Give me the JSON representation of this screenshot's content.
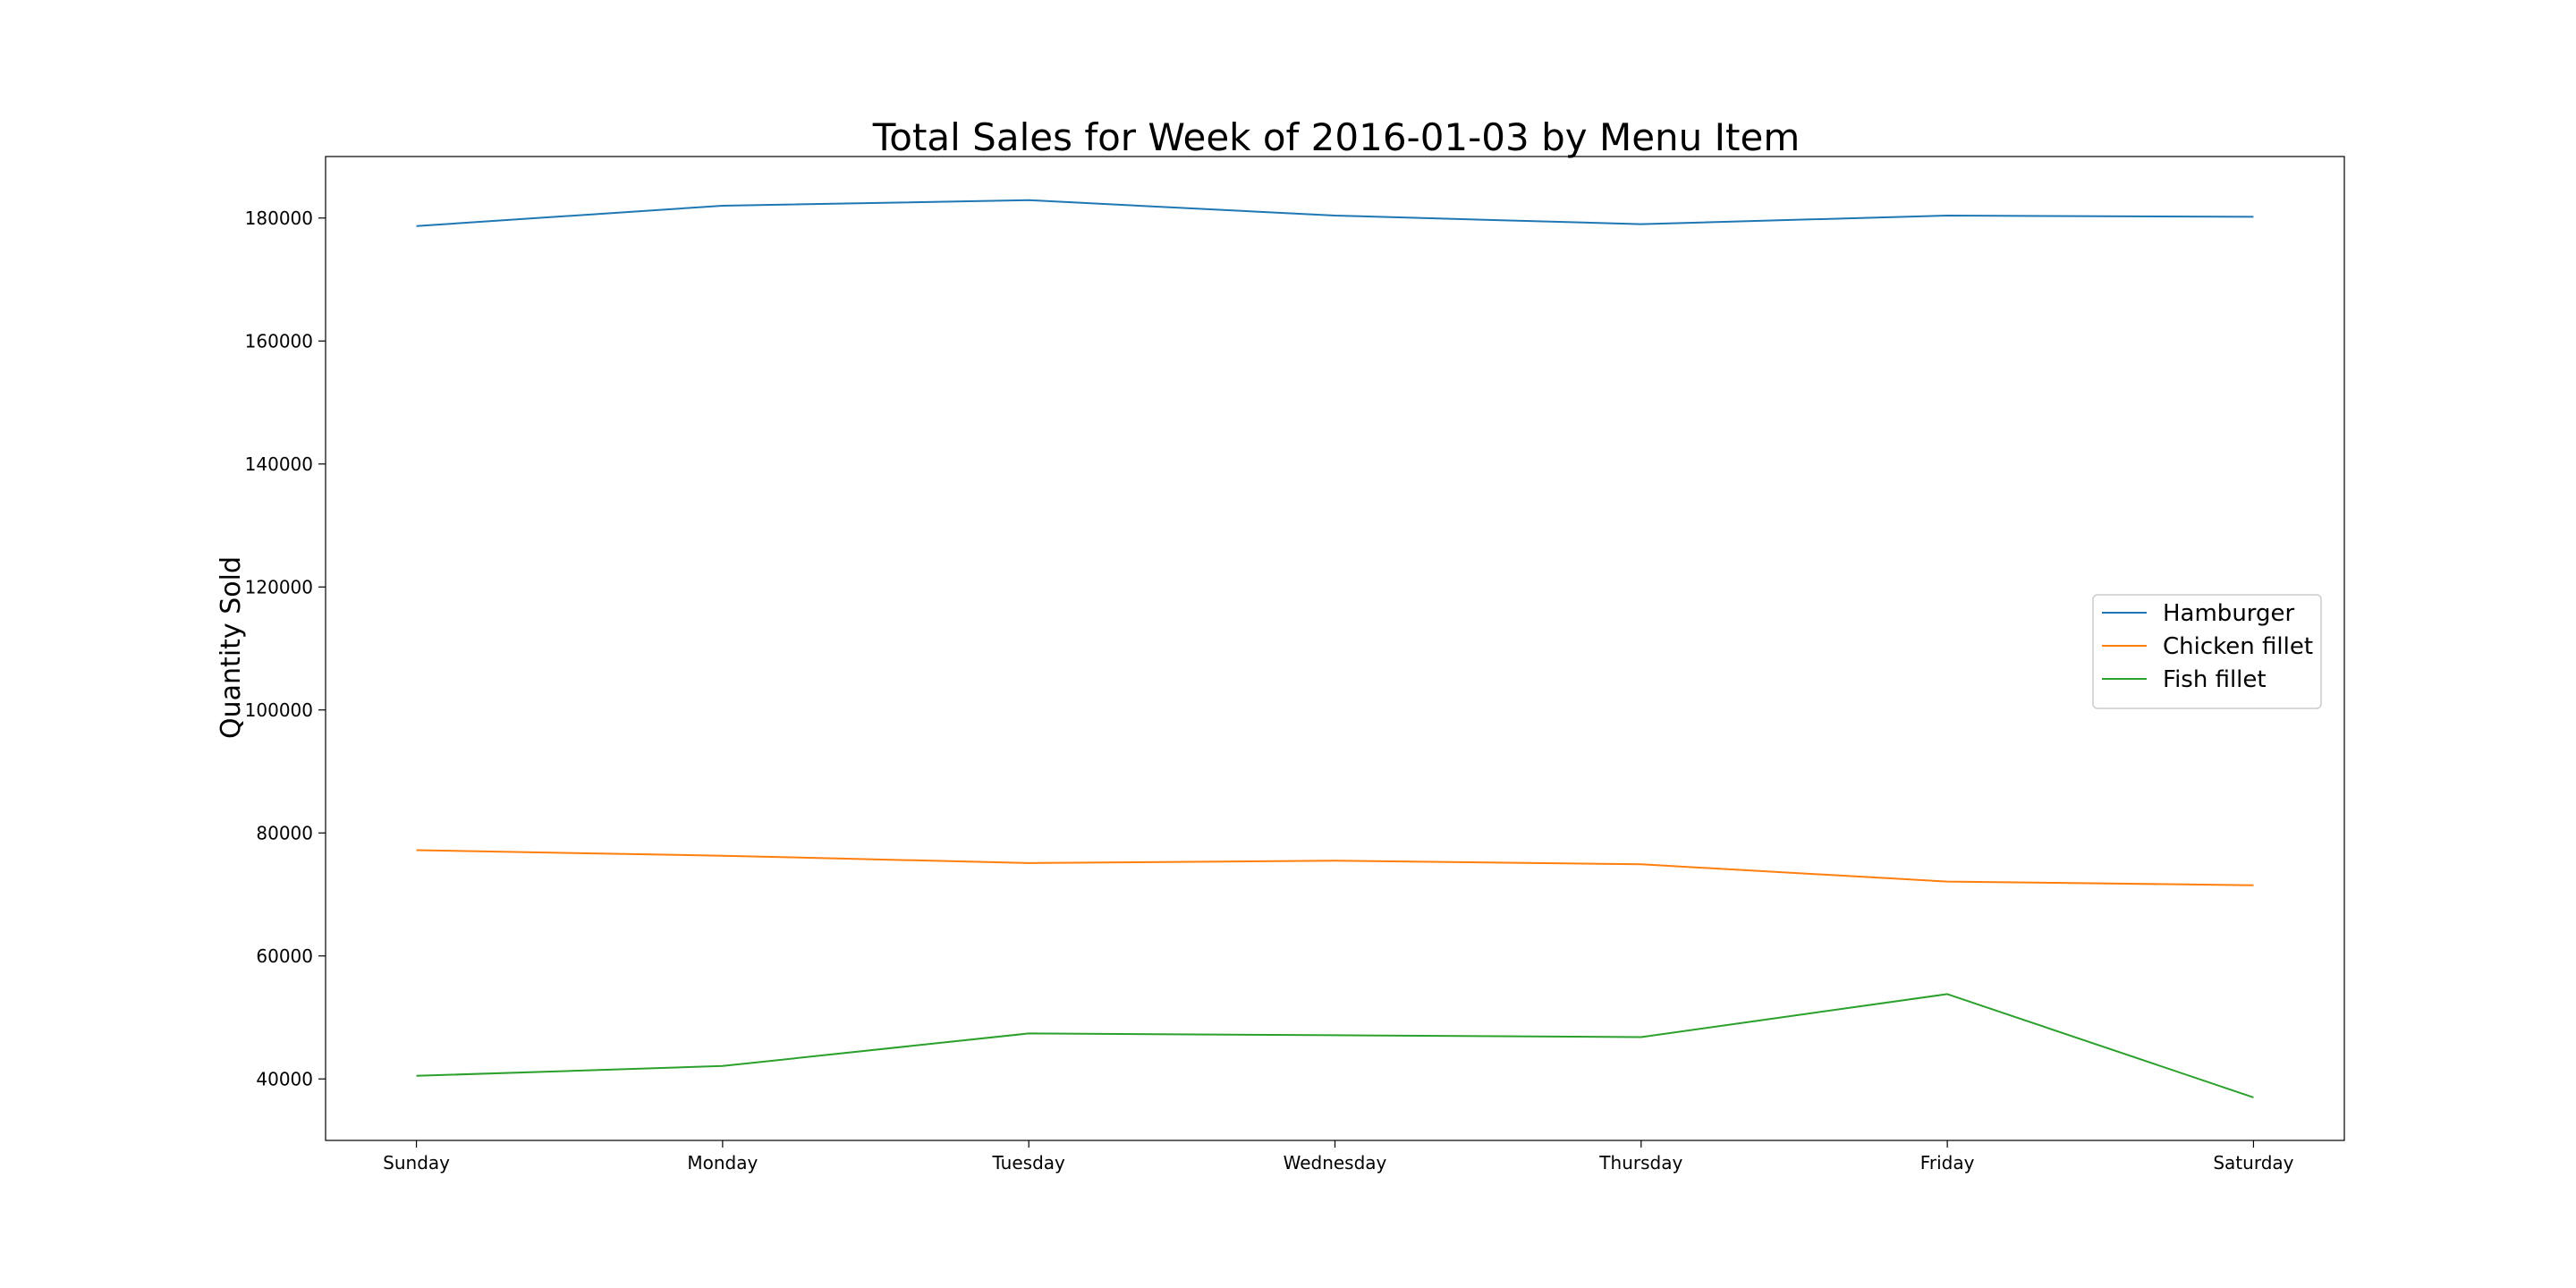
{
  "chart_data": {
    "type": "line",
    "title": "Total Sales for Week of 2016-01-03 by Menu Item",
    "xlabel": "",
    "ylabel": "Quantity Sold",
    "categories": [
      "Sunday",
      "Monday",
      "Tuesday",
      "Wednesday",
      "Thursday",
      "Friday",
      "Saturday"
    ],
    "ylim": [
      30000,
      190000
    ],
    "yticks": [
      40000,
      60000,
      80000,
      100000,
      120000,
      140000,
      160000,
      180000
    ],
    "ytick_labels": [
      "40000",
      "60000",
      "80000",
      "100000",
      "120000",
      "140000",
      "160000",
      "180000"
    ],
    "grid": false,
    "legend_position": "center-right",
    "series": [
      {
        "name": "Hamburger",
        "color": "#1f77b4",
        "values": [
          178700,
          182000,
          182900,
          180400,
          179000,
          180400,
          180200
        ]
      },
      {
        "name": "Chicken fillet",
        "color": "#ff7f0e",
        "values": [
          77200,
          76300,
          75100,
          75500,
          74900,
          72100,
          71500
        ]
      },
      {
        "name": "Fish fillet",
        "color": "#2ca02c",
        "values": [
          40500,
          42100,
          47400,
          47100,
          46800,
          53800,
          37000
        ]
      }
    ]
  }
}
